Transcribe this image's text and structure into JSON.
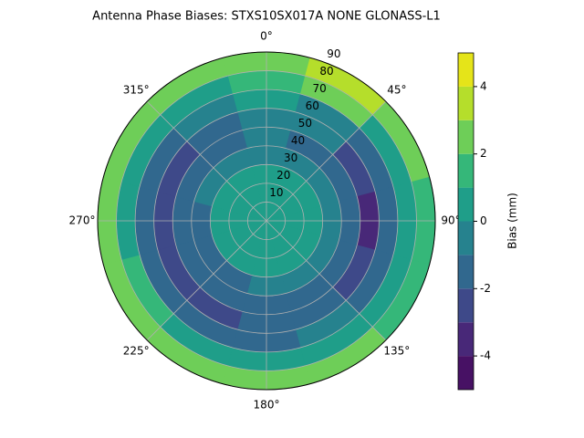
{
  "chart_data": {
    "type": "polar_contour",
    "title": "Antenna Phase Biases: STXS10SX017A    NONE GLONASS-L1",
    "azimuth": [
      0,
      30,
      60,
      90,
      120,
      150,
      180,
      210,
      240,
      270,
      300,
      330
    ],
    "zenith": [
      5,
      15,
      25,
      35,
      45,
      55,
      65,
      75,
      85
    ],
    "values": [
      [
        0.5,
        0.5,
        0.5,
        0.5,
        0.5,
        0.5,
        0.5,
        0.5,
        0.5,
        0.5,
        0.5,
        0.5
      ],
      [
        0.6,
        0.6,
        0.6,
        0.6,
        0.6,
        0.6,
        0.6,
        0.6,
        0.6,
        0.6,
        0.6,
        0.6
      ],
      [
        0.4,
        0.4,
        0.3,
        0.3,
        0.4,
        0.5,
        0.5,
        0.4,
        0.3,
        0.3,
        0.4,
        0.4
      ],
      [
        -0.3,
        -0.3,
        -0.5,
        -0.8,
        -0.6,
        -0.4,
        -0.5,
        -1.2,
        -1.3,
        -1.2,
        -0.8,
        -0.5
      ],
      [
        -1.0,
        -1.1,
        -1.5,
        -1.8,
        -1.4,
        -1.2,
        -1.3,
        -1.6,
        -1.8,
        -1.7,
        -1.5,
        -1.2
      ],
      [
        -0.8,
        -1.0,
        -2.3,
        -3.2,
        -2.4,
        -1.5,
        -1.8,
        -2.2,
        -2.3,
        -2.2,
        -2.1,
        -1.3
      ],
      [
        0.3,
        -0.2,
        -1.2,
        -1.6,
        -1.2,
        -1.0,
        -1.3,
        -1.4,
        -1.5,
        -1.6,
        -1.8,
        -0.6
      ],
      [
        1.5,
        2.3,
        0.6,
        0.3,
        0.4,
        0.5,
        0.4,
        0.6,
        1.2,
        0.8,
        0.4,
        0.8
      ],
      [
        2.5,
        3.8,
        2.5,
        1.5,
        1.7,
        2.0,
        2.2,
        2.7,
        2.8,
        2.6,
        2.3,
        2.2
      ]
    ],
    "rlim": [
      0,
      90
    ],
    "rticks": [
      10,
      20,
      30,
      40,
      50,
      60,
      70,
      80,
      90
    ],
    "thetaticks": [
      {
        "value": 0,
        "label": "0°"
      },
      {
        "value": 45,
        "label": "45°"
      },
      {
        "value": 90,
        "label": "90°"
      },
      {
        "value": 135,
        "label": "135°"
      },
      {
        "value": 180,
        "label": "180°"
      },
      {
        "value": 225,
        "label": "225°"
      },
      {
        "value": 270,
        "label": "270°"
      },
      {
        "value": 315,
        "label": "315°"
      }
    ],
    "levels": [
      -5,
      -4,
      -3,
      -2,
      -1,
      0,
      1,
      2,
      3,
      4,
      5
    ],
    "colors": [
      "#471164",
      "#482878",
      "#3e4989",
      "#31688e",
      "#26828e",
      "#1f9e89",
      "#35b779",
      "#6ece58",
      "#b5de2b",
      "#e5e419"
    ],
    "colorbar_label": "Bias (mm)",
    "clim": [
      -5,
      5
    ],
    "cticks": [
      -4,
      -2,
      0,
      2,
      4
    ],
    "grid": true
  }
}
